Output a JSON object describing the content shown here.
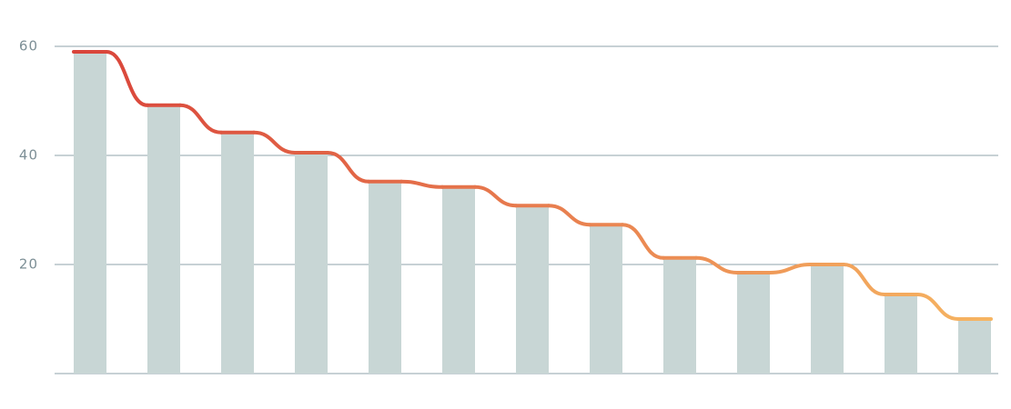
{
  "chart_data": {
    "type": "bar",
    "values": [
      59,
      49.2,
      44.2,
      40.5,
      35.2,
      34.2,
      30.8,
      27.3,
      21.2,
      18.5,
      20,
      14.5,
      10
    ],
    "color": "#c8d6d5",
    "line_colors": [
      "#d9433a",
      "#f6b562"
    ],
    "ylim": [
      0,
      60
    ],
    "yticks": [
      20,
      40,
      60
    ],
    "grid": true
  }
}
